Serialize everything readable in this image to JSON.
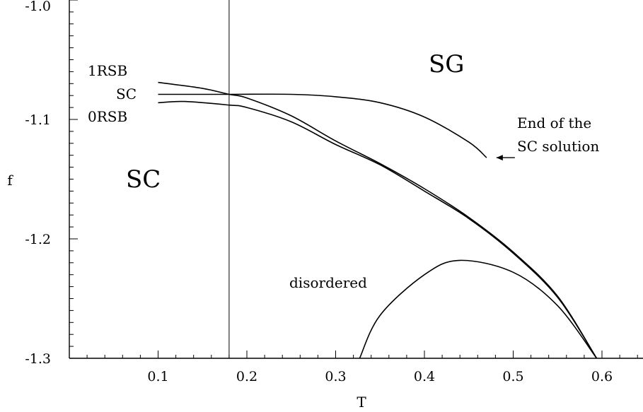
{
  "chart_data": {
    "type": "line",
    "title": "",
    "xlabel": "T",
    "ylabel": "f",
    "xlim": [
      0.0,
      0.65
    ],
    "ylim": [
      -1.3,
      -1.0
    ],
    "grid": false,
    "x_ticks": [
      0.1,
      0.2,
      0.3,
      0.4,
      0.5,
      0.6
    ],
    "x_tick_labels": [
      "0.1",
      "0.2",
      "0.3",
      "0.4",
      "0.5",
      "0.6"
    ],
    "y_ticks": [
      -1.0,
      -1.1,
      -1.2,
      -1.3
    ],
    "y_tick_labels": [
      "-1.0",
      "-1.1",
      "-1.2",
      "-1.3"
    ],
    "vertical_line_x": 0.18,
    "series": [
      {
        "name": "1RSB",
        "x": [
          0.1,
          0.15,
          0.18,
          0.2,
          0.25,
          0.3,
          0.35,
          0.4,
          0.45,
          0.5,
          0.55,
          0.594
        ],
        "y": [
          -1.069,
          -1.074,
          -1.079,
          -1.082,
          -1.097,
          -1.118,
          -1.137,
          -1.158,
          -1.182,
          -1.211,
          -1.248,
          -1.3
        ]
      },
      {
        "name": "SC",
        "x": [
          0.1,
          0.18,
          0.25,
          0.3,
          0.35,
          0.4,
          0.45,
          0.47
        ],
        "y": [
          -1.079,
          -1.079,
          -1.079,
          -1.081,
          -1.086,
          -1.098,
          -1.119,
          -1.132
        ]
      },
      {
        "name": "0RSB",
        "x": [
          0.1,
          0.13,
          0.18,
          0.2,
          0.25,
          0.3,
          0.35,
          0.4,
          0.45,
          0.5,
          0.55,
          0.594
        ],
        "y": [
          -1.086,
          -1.085,
          -1.088,
          -1.09,
          -1.102,
          -1.121,
          -1.138,
          -1.16,
          -1.183,
          -1.212,
          -1.249,
          -1.3
        ]
      },
      {
        "name": "disordered",
        "x": [
          0.327,
          0.35,
          0.4,
          0.44,
          0.5,
          0.55,
          0.594
        ],
        "y": [
          -1.3,
          -1.264,
          -1.23,
          -1.218,
          -1.228,
          -1.256,
          -1.3
        ]
      }
    ],
    "annotations": {
      "1RSB": "1RSB",
      "SC_curve": "SC",
      "0RSB": "0RSB",
      "SG": "SG",
      "SC_region": "SC",
      "disordered": "disordered",
      "end_line1": "End of the",
      "end_line2": "SC solution"
    }
  }
}
